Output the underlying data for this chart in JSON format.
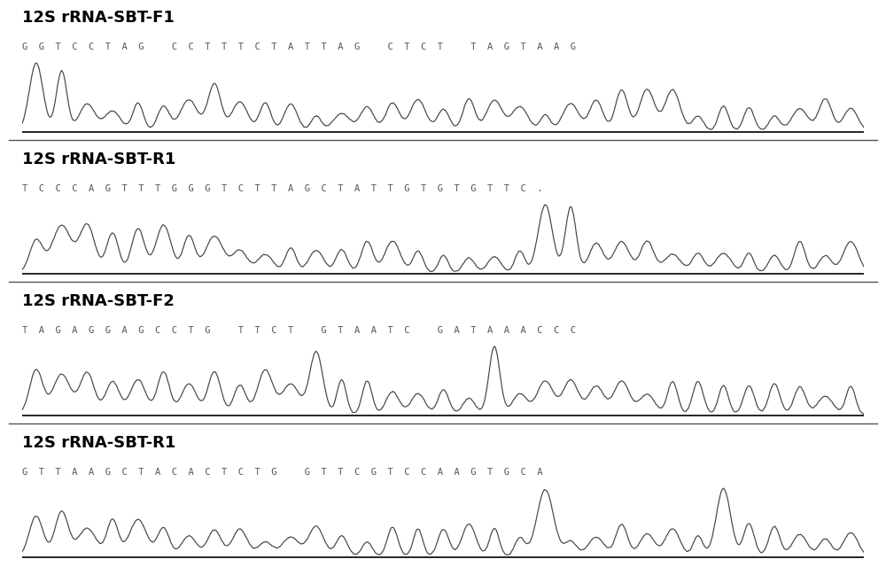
{
  "panels": [
    {
      "label": "12S rRNA-SBT-F1",
      "sequence": "G  G  T  C  C  T  A  G     C  C  T  T  T  C  T  A  T  T  A  G     C  T  C  T     T  A  G  T  A  A  G",
      "label_fontsize": 13,
      "seq_fontsize": 7.5
    },
    {
      "label": "12S rRNA-SBT-R1",
      "sequence": "T  C  C  C  A  G  T  T  T  G  G  G  T  C  T  T  A  G  C  T  A  T  T  G  T  G  T  G  T  T  C  .",
      "label_fontsize": 13,
      "seq_fontsize": 7.5
    },
    {
      "label": "12S rRNA-SBT-F2",
      "sequence": "T  A  G  A  G  G  A  G  C  C  T  G     T  T  C  T     G  T  A  A  T  C     G  A  T  A  A  A  C  C  C",
      "label_fontsize": 13,
      "seq_fontsize": 7.5
    },
    {
      "label": "12S rRNA-SBT-R1",
      "sequence": "G  T  T  A  A  G  C  T  A  C  A  C  T  C  T  G     G  T  T  C  G  T  C  C  A  A  G  T  G  C  A",
      "label_fontsize": 13,
      "seq_fontsize": 7.5
    }
  ],
  "background_color": "#ffffff",
  "chromatogram_color": "#444444",
  "separator_color": "#555555",
  "peak_seeds": [
    101,
    202,
    303,
    404
  ],
  "peak_variations": [
    {
      "tall_peaks": [
        0,
        1
      ],
      "mid_peaks": [
        6,
        7,
        8,
        22,
        23,
        24,
        25
      ]
    },
    {
      "tall_peaks": [
        20,
        21
      ],
      "mid_peaks": [
        0,
        1,
        2,
        3,
        4,
        5,
        6,
        7
      ]
    },
    {
      "tall_peaks": [
        11,
        18
      ],
      "mid_peaks": [
        0,
        1,
        2,
        3,
        4,
        5,
        6,
        7,
        8,
        9,
        10
      ]
    },
    {
      "tall_peaks": [
        20,
        27
      ],
      "mid_peaks": [
        0,
        1,
        2,
        3,
        4
      ]
    }
  ]
}
